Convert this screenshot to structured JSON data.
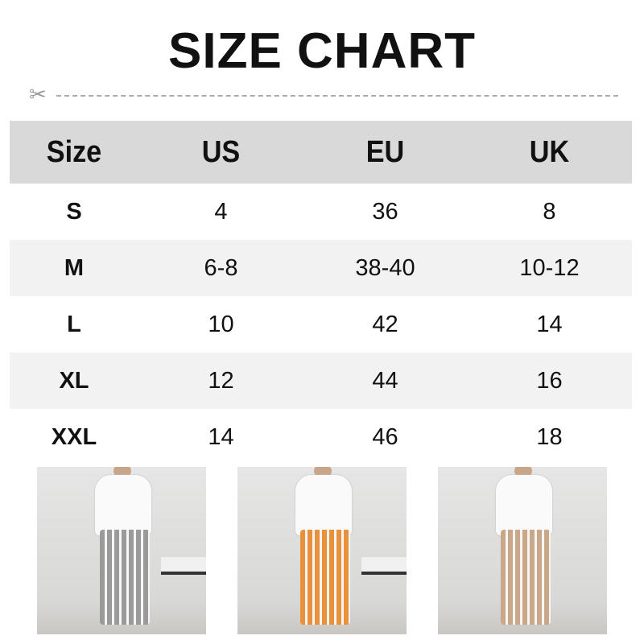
{
  "title": "SIZE CHART",
  "cut_icon": "scissors-icon",
  "table": {
    "headers": [
      "Size",
      "US",
      "EU",
      "UK"
    ],
    "rows": [
      [
        "S",
        "4",
        "36",
        "8"
      ],
      [
        "M",
        "6-8",
        "38-40",
        "10-12"
      ],
      [
        "L",
        "10",
        "42",
        "14"
      ],
      [
        "XL",
        "12",
        "44",
        "16"
      ],
      [
        "XXL",
        "14",
        "46",
        "18"
      ]
    ]
  },
  "photos": [
    {
      "pants_color": "#9a9a9a"
    },
    {
      "pants_color": "#e8913a"
    },
    {
      "pants_color": "#c9a88a"
    }
  ],
  "colors": {
    "header_bg": "#d9d9d9",
    "alt_row_bg": "#f2f2f2"
  }
}
